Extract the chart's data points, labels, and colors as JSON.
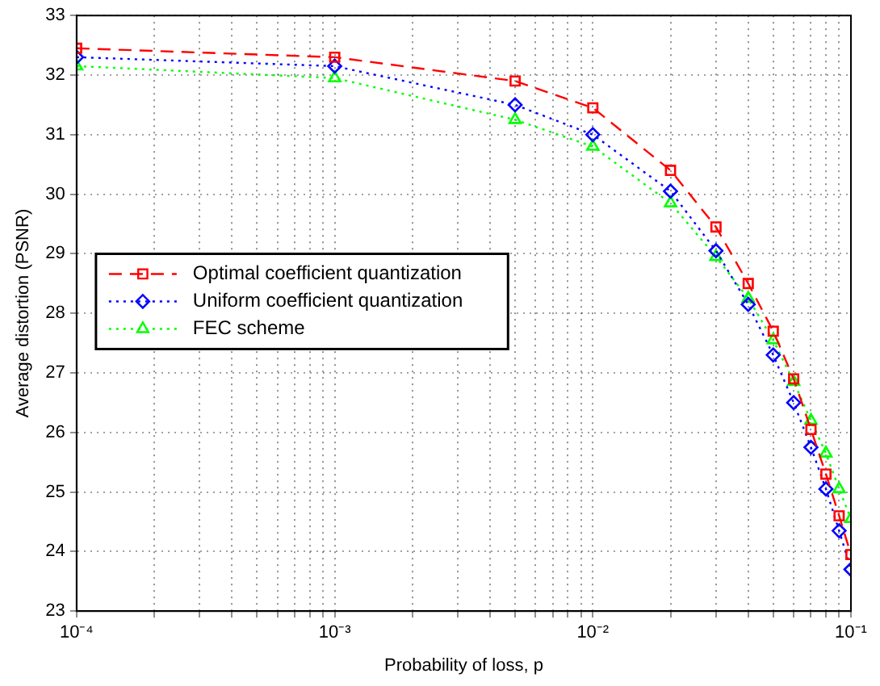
{
  "chart_data": {
    "type": "line",
    "xlabel": "Probability of loss, p",
    "ylabel": "Average distortion (PSNR)",
    "x": [
      0.0001,
      0.001,
      0.005,
      0.01,
      0.02,
      0.03,
      0.04,
      0.05,
      0.06,
      0.07,
      0.08,
      0.09,
      0.1
    ],
    "series": [
      {
        "name": "Optimal coefficient quantization",
        "color": "#ff0000",
        "marker": "square",
        "line_style": "dashed",
        "values": [
          32.45,
          32.3,
          31.9,
          31.45,
          30.4,
          29.45,
          28.5,
          27.7,
          26.9,
          26.05,
          25.3,
          24.6,
          23.95
        ]
      },
      {
        "name": "Uniform coefficient quantization",
        "color": "#0000ff",
        "marker": "diamond",
        "line_style": "dotted",
        "values": [
          32.3,
          32.15,
          31.5,
          31.0,
          30.05,
          29.05,
          28.15,
          27.3,
          26.5,
          25.75,
          25.05,
          24.35,
          23.7
        ]
      },
      {
        "name": "FEC scheme",
        "color": "#00ff00",
        "marker": "triangle",
        "line_style": "dotted",
        "values": [
          32.15,
          31.95,
          31.25,
          30.8,
          29.85,
          28.95,
          28.25,
          27.55,
          26.85,
          26.2,
          25.65,
          25.05,
          24.55
        ]
      }
    ],
    "log": "x",
    "xlim": [
      0.0001,
      0.1
    ],
    "ylim": [
      23,
      33
    ],
    "xticks": [
      {
        "value": 0.0001,
        "label": "10⁻⁴"
      },
      {
        "value": 0.0002,
        "label": null
      },
      {
        "value": 0.0003,
        "label": null
      },
      {
        "value": 0.0004,
        "label": null
      },
      {
        "value": 0.0005,
        "label": null
      },
      {
        "value": 0.0006,
        "label": null
      },
      {
        "value": 0.0007,
        "label": null
      },
      {
        "value": 0.0008,
        "label": null
      },
      {
        "value": 0.0009,
        "label": null
      },
      {
        "value": 0.001,
        "label": "10⁻³"
      },
      {
        "value": 0.002,
        "label": null
      },
      {
        "value": 0.003,
        "label": null
      },
      {
        "value": 0.004,
        "label": null
      },
      {
        "value": 0.005,
        "label": null
      },
      {
        "value": 0.006,
        "label": null
      },
      {
        "value": 0.007,
        "label": null
      },
      {
        "value": 0.008,
        "label": null
      },
      {
        "value": 0.009,
        "label": null
      },
      {
        "value": 0.01,
        "label": "10⁻²"
      },
      {
        "value": 0.02,
        "label": null
      },
      {
        "value": 0.03,
        "label": null
      },
      {
        "value": 0.04,
        "label": null
      },
      {
        "value": 0.05,
        "label": null
      },
      {
        "value": 0.06,
        "label": null
      },
      {
        "value": 0.07,
        "label": null
      },
      {
        "value": 0.08,
        "label": null
      },
      {
        "value": 0.09,
        "label": null
      },
      {
        "value": 0.1,
        "label": "10⁻¹"
      }
    ],
    "yticks": [
      23,
      24,
      25,
      26,
      27,
      28,
      29,
      30,
      31,
      32,
      33
    ],
    "grid": true,
    "legend": "center left"
  }
}
